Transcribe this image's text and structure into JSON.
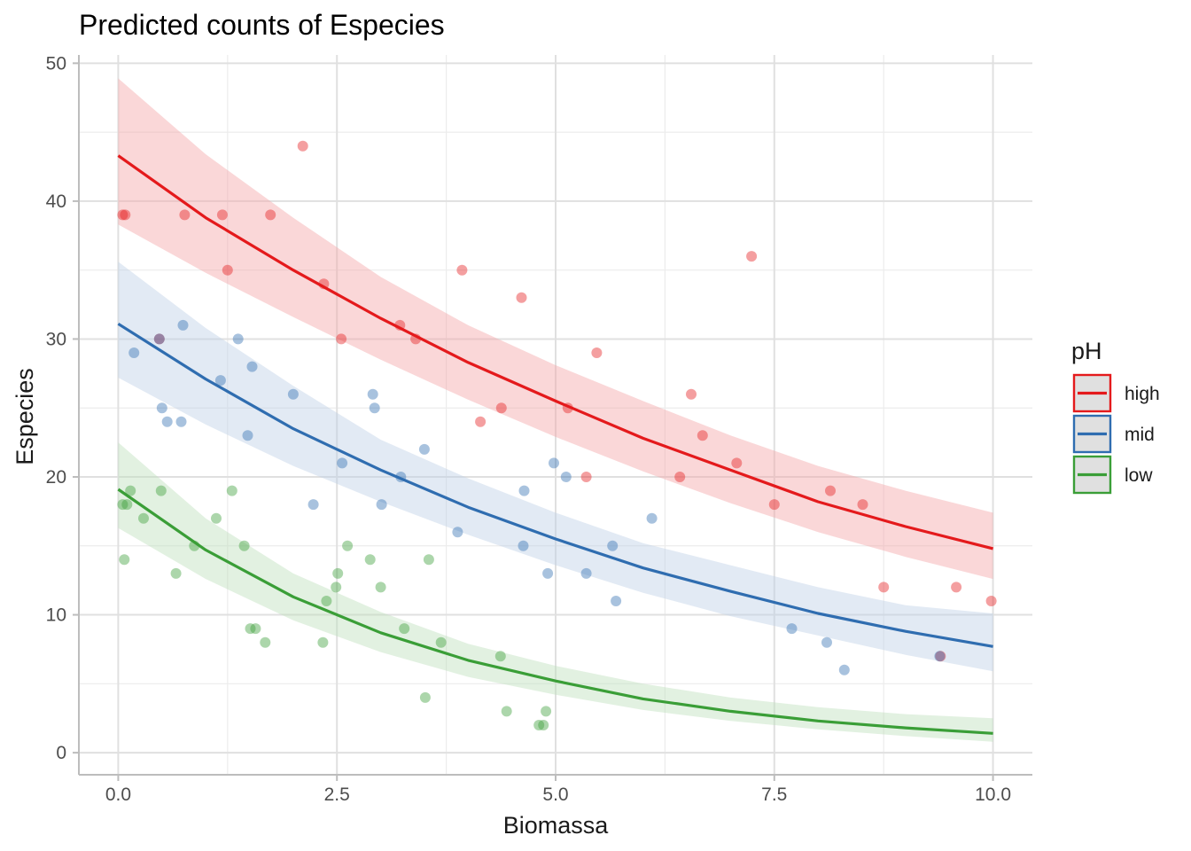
{
  "chart_data": {
    "type": "scatter",
    "title": "Predicted counts of Especies",
    "xlabel": "Biomassa",
    "ylabel": "Especies",
    "xlim": [
      -0.45,
      10.45
    ],
    "ylim": [
      -1.6,
      50.6
    ],
    "x_ticks": [
      0,
      2.5,
      5,
      7.5,
      10
    ],
    "x_tick_labels": [
      "0.0",
      "2.5",
      "5.0",
      "7.5",
      "10.0"
    ],
    "y_ticks": [
      0,
      10,
      20,
      30,
      40,
      50
    ],
    "y_tick_labels": [
      "0",
      "10",
      "20",
      "30",
      "40",
      "50"
    ],
    "grid": true,
    "legend": {
      "title": "pH",
      "placement": "right"
    },
    "series": [
      {
        "name": "high",
        "color": "#E41A1C",
        "ribbon_color": "#F4A6A8",
        "fit": {
          "x": [
            0,
            1,
            2,
            3,
            4,
            5,
            6,
            7,
            8,
            9,
            10
          ],
          "y": [
            43.3,
            38.8,
            35.0,
            31.5,
            28.3,
            25.5,
            22.8,
            20.5,
            18.2,
            16.4,
            14.8
          ],
          "lower": [
            38.3,
            34.8,
            31.6,
            28.5,
            25.6,
            22.9,
            20.4,
            18.1,
            16.0,
            14.2,
            12.6
          ],
          "upper": [
            48.9,
            43.4,
            38.8,
            34.5,
            31.0,
            28.1,
            25.5,
            23.0,
            20.8,
            19.0,
            17.4
          ]
        },
        "points": [
          [
            0.05,
            39
          ],
          [
            0.08,
            39
          ],
          [
            0.47,
            30
          ],
          [
            0.76,
            39
          ],
          [
            1.19,
            39
          ],
          [
            1.25,
            35
          ],
          [
            1.74,
            39
          ],
          [
            2.11,
            44
          ],
          [
            2.35,
            34
          ],
          [
            2.55,
            30
          ],
          [
            3.22,
            31
          ],
          [
            3.4,
            30
          ],
          [
            3.93,
            35
          ],
          [
            4.14,
            24
          ],
          [
            4.38,
            25
          ],
          [
            4.61,
            33
          ],
          [
            5.14,
            25
          ],
          [
            5.35,
            20
          ],
          [
            5.47,
            29
          ],
          [
            6.42,
            20
          ],
          [
            6.55,
            26
          ],
          [
            6.68,
            23
          ],
          [
            7.07,
            21
          ],
          [
            7.24,
            36
          ],
          [
            7.5,
            18
          ],
          [
            8.14,
            19
          ],
          [
            8.51,
            18
          ],
          [
            8.75,
            12
          ],
          [
            9.4,
            7
          ],
          [
            9.58,
            12
          ],
          [
            9.98,
            11
          ]
        ]
      },
      {
        "name": "mid",
        "color": "#2F6DB0",
        "ribbon_color": "#BFD0E6",
        "fit": {
          "x": [
            0,
            1,
            2,
            3,
            4,
            5,
            6,
            7,
            8,
            9,
            10
          ],
          "y": [
            31.1,
            27.1,
            23.5,
            20.5,
            17.8,
            15.5,
            13.4,
            11.7,
            10.1,
            8.8,
            7.7
          ],
          "lower": [
            27.2,
            23.8,
            20.8,
            18.2,
            15.8,
            13.6,
            11.6,
            9.9,
            8.5,
            7.1,
            5.9
          ],
          "upper": [
            35.6,
            30.8,
            26.6,
            22.7,
            19.9,
            17.4,
            15.2,
            13.6,
            12.0,
            10.7,
            10.1
          ]
        },
        "points": [
          [
            0.18,
            29
          ],
          [
            0.47,
            30
          ],
          [
            0.5,
            25
          ],
          [
            0.56,
            24
          ],
          [
            0.72,
            24
          ],
          [
            0.74,
            31
          ],
          [
            1.17,
            27
          ],
          [
            1.37,
            30
          ],
          [
            1.48,
            23
          ],
          [
            1.53,
            28
          ],
          [
            2.0,
            26
          ],
          [
            2.56,
            21
          ],
          [
            2.23,
            18
          ],
          [
            2.91,
            26
          ],
          [
            2.93,
            25
          ],
          [
            3.01,
            18
          ],
          [
            3.23,
            20
          ],
          [
            3.5,
            22
          ],
          [
            3.88,
            16
          ],
          [
            4.64,
            19
          ],
          [
            4.63,
            15
          ],
          [
            4.91,
            13
          ],
          [
            4.98,
            21
          ],
          [
            5.12,
            20
          ],
          [
            5.35,
            13
          ],
          [
            5.65,
            15
          ],
          [
            5.69,
            11
          ],
          [
            6.1,
            17
          ],
          [
            7.7,
            9
          ],
          [
            8.1,
            8
          ],
          [
            8.3,
            6
          ],
          [
            9.39,
            7
          ]
        ]
      },
      {
        "name": "low",
        "color": "#3A9E37",
        "ribbon_color": "#BFE0BC",
        "fit": {
          "x": [
            0,
            1,
            2,
            3,
            4,
            5,
            6,
            7,
            8,
            9,
            10
          ],
          "y": [
            19.1,
            14.7,
            11.3,
            8.7,
            6.7,
            5.2,
            3.9,
            3.0,
            2.3,
            1.8,
            1.4
          ],
          "lower": [
            16.3,
            12.6,
            9.6,
            7.3,
            5.5,
            4.2,
            3.1,
            2.3,
            1.7,
            1.2,
            0.8
          ],
          "upper": [
            22.5,
            17.0,
            13.0,
            10.2,
            7.9,
            6.3,
            5.0,
            4.0,
            3.3,
            2.8,
            2.5
          ]
        },
        "points": [
          [
            0.05,
            18
          ],
          [
            0.1,
            18
          ],
          [
            0.07,
            14
          ],
          [
            0.14,
            19
          ],
          [
            0.29,
            17
          ],
          [
            0.49,
            19
          ],
          [
            0.66,
            13
          ],
          [
            0.87,
            15
          ],
          [
            1.12,
            17
          ],
          [
            1.3,
            19
          ],
          [
            1.44,
            15
          ],
          [
            1.51,
            9
          ],
          [
            1.57,
            9
          ],
          [
            1.68,
            8
          ],
          [
            2.34,
            8
          ],
          [
            2.38,
            11
          ],
          [
            2.49,
            12
          ],
          [
            2.51,
            13
          ],
          [
            2.62,
            15
          ],
          [
            2.88,
            14
          ],
          [
            3.0,
            12
          ],
          [
            3.27,
            9
          ],
          [
            3.51,
            4
          ],
          [
            3.55,
            14
          ],
          [
            3.69,
            8
          ],
          [
            4.37,
            7
          ],
          [
            4.44,
            3
          ],
          [
            4.81,
            2
          ],
          [
            4.86,
            2
          ],
          [
            4.89,
            3
          ]
        ]
      }
    ]
  }
}
